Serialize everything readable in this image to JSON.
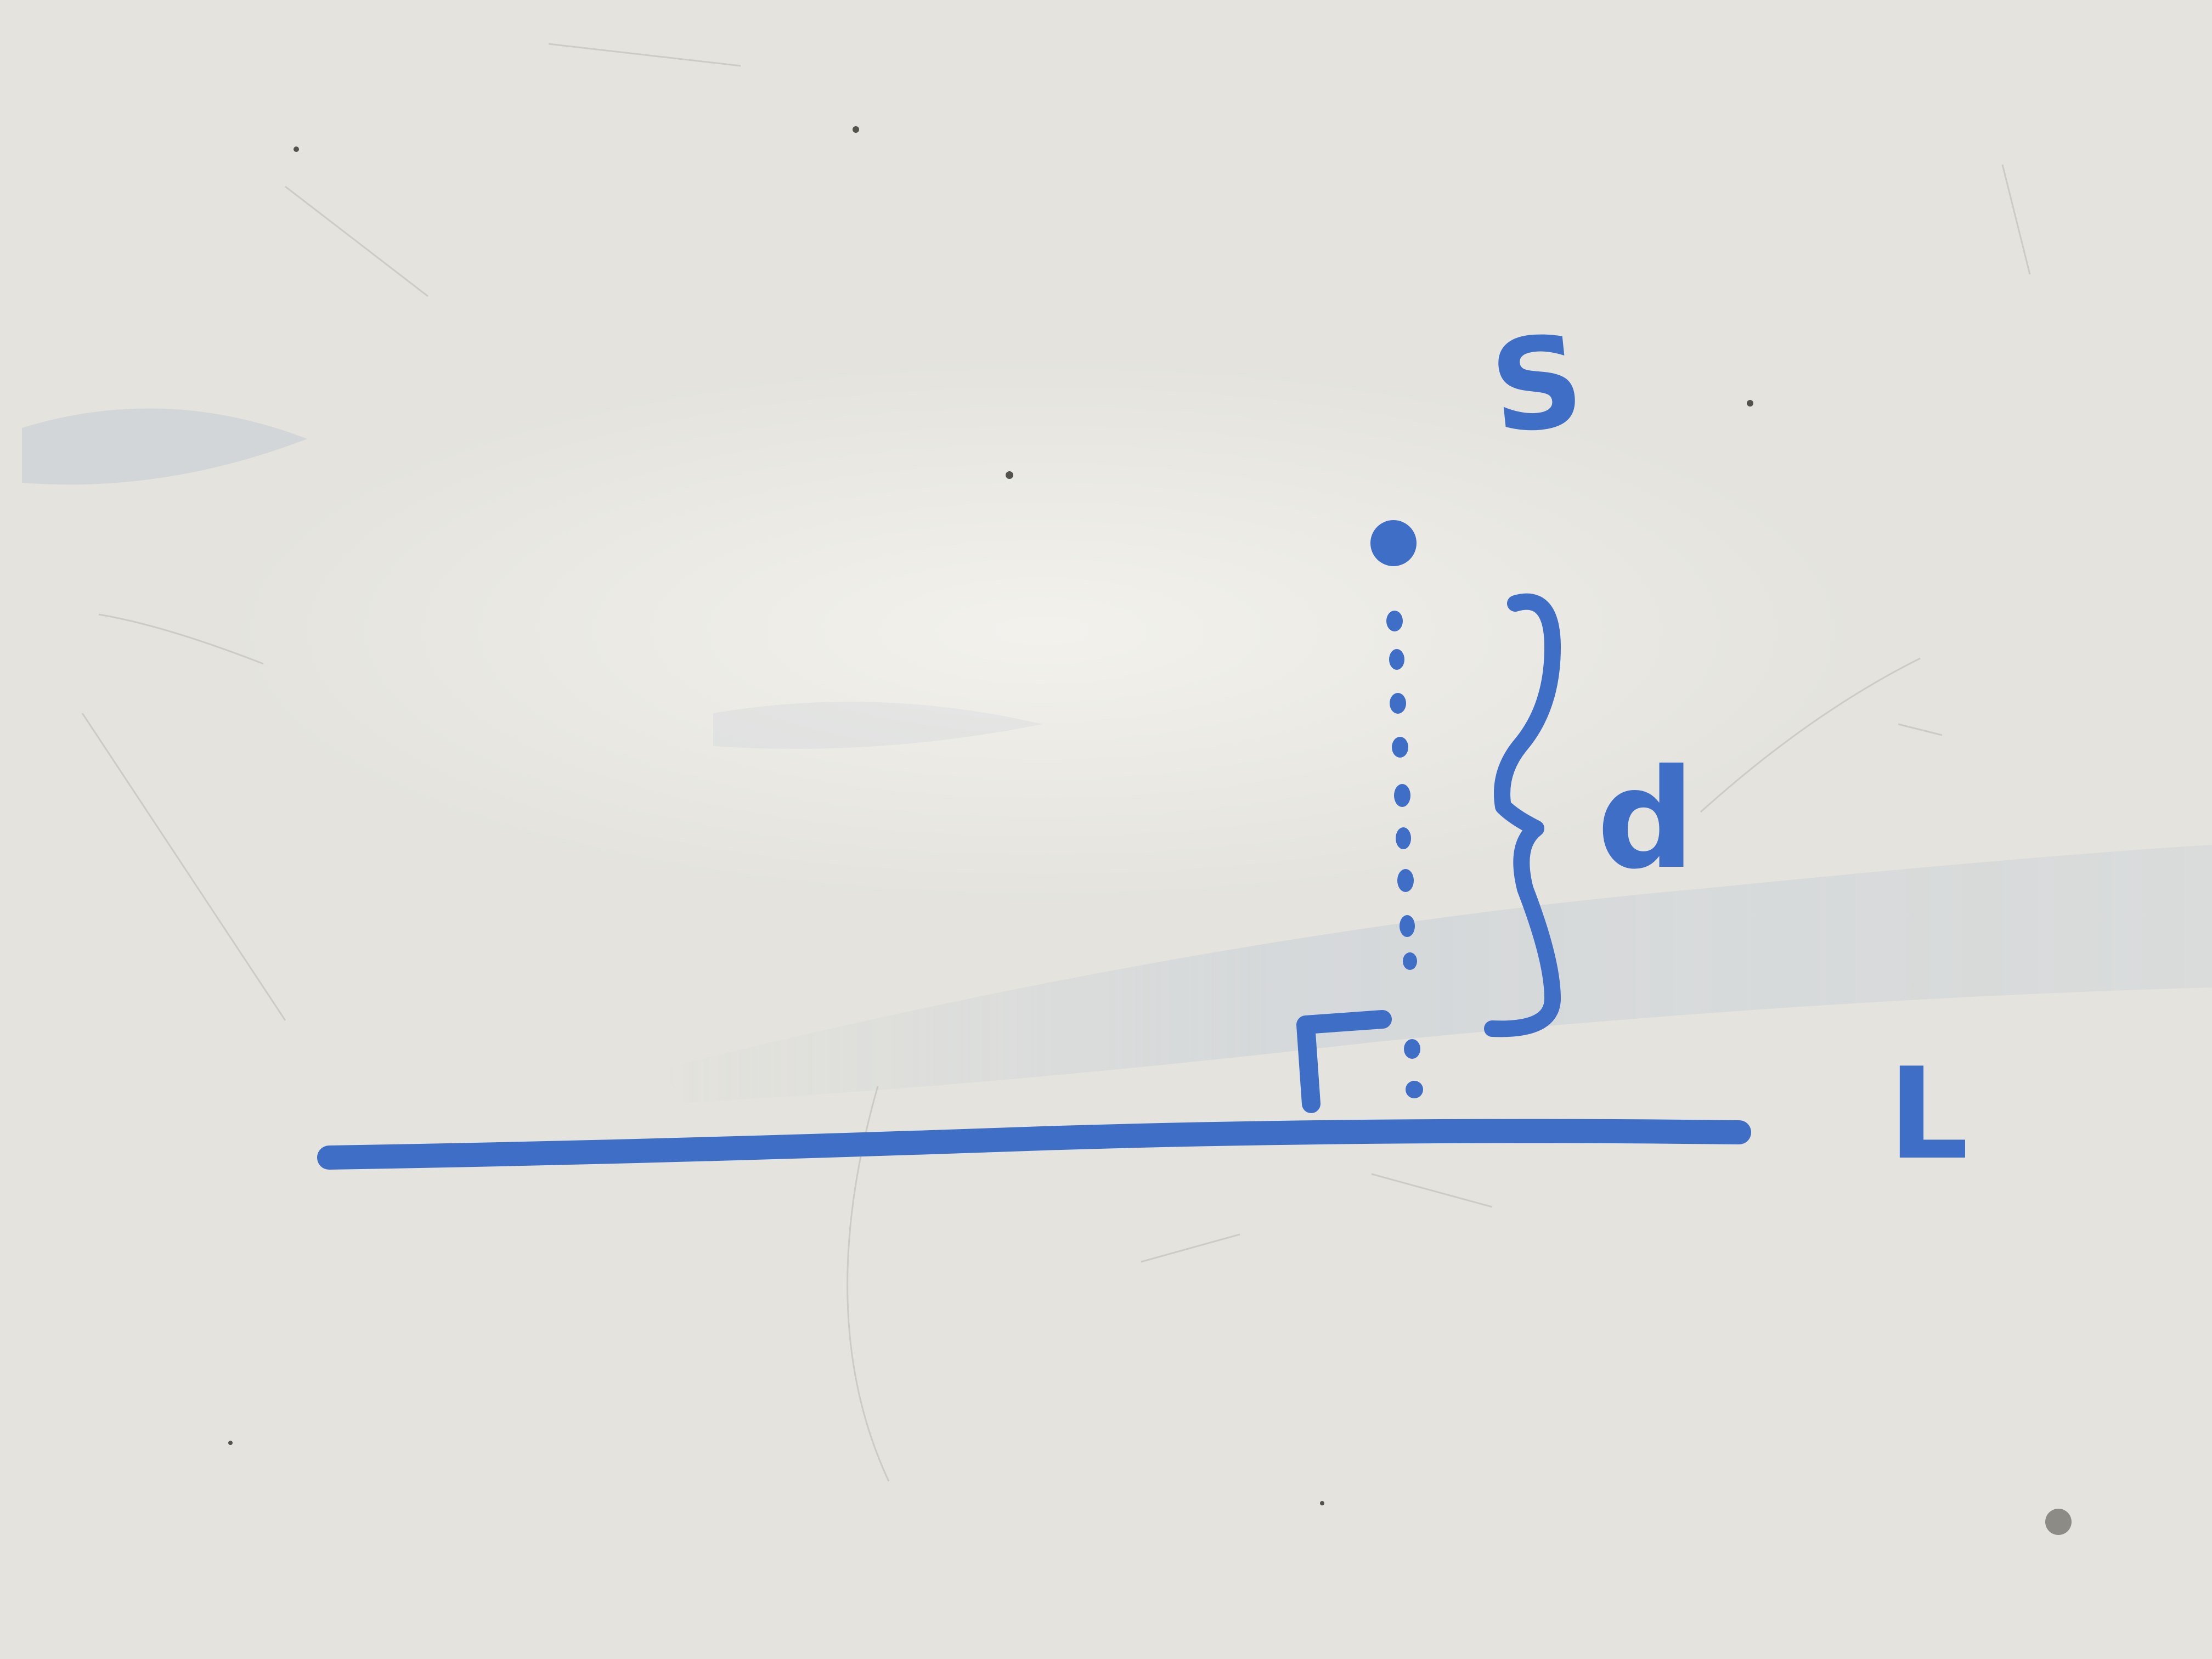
{
  "colors": {
    "board": "#e4e3dd",
    "ink": "#3f6ec6",
    "smudge": "#9fb3d3",
    "scratch": "#c9c8c2"
  },
  "diagram": {
    "point_label": "S",
    "distance_label": "d",
    "line_label": "L",
    "elements": [
      "point",
      "dotted-perpendicular",
      "right-angle-marker",
      "brace",
      "line"
    ]
  }
}
